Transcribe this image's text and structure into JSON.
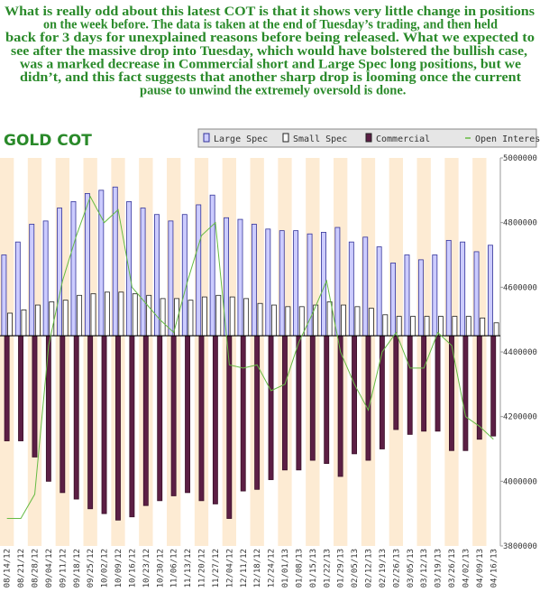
{
  "text": {
    "lines": [
      "What is really odd about this latest COT is that it shows very little change in positions",
      "on the week before. The data is taken at the end of Tuesday’s trading, and then held",
      "back for 3 days for unexplained reasons before being released. What we expected to",
      "see after the massive drop into Tuesday, which would have bolstered the bullish case,",
      "was a marked decrease in Commercial short and Large Spec long positions, but we",
      "didn’t, and this fact suggests that another sharp drop is looming once the current",
      "pause to unwind the extremely oversold is done."
    ]
  },
  "chart_data": {
    "type": "bar",
    "title": "GOLD COT",
    "categories": [
      "08/14/12",
      "08/21/12",
      "08/28/12",
      "09/04/12",
      "09/11/12",
      "09/18/12",
      "09/25/12",
      "10/02/12",
      "10/09/12",
      "10/16/12",
      "10/23/12",
      "10/30/12",
      "11/06/12",
      "11/13/12",
      "11/20/12",
      "11/27/12",
      "12/04/12",
      "12/11/12",
      "12/18/12",
      "12/24/12",
      "01/01/13",
      "01/08/13",
      "01/15/13",
      "01/22/13",
      "01/29/13",
      "02/05/13",
      "02/12/13",
      "02/19/13",
      "02/26/13",
      "03/05/13",
      "03/12/13",
      "03/19/13",
      "03/26/13",
      "04/02/13",
      "04/09/13",
      "04/16/13"
    ],
    "ylim": [
      -650000,
      550000
    ],
    "y2lim": [
      3800000,
      5000000
    ],
    "y2ticks": [
      3800000,
      4000000,
      4200000,
      4400000,
      4600000,
      4800000,
      5000000
    ],
    "series": [
      {
        "name": "Large Spec",
        "color": "#ccccff",
        "values": [
          250000,
          290000,
          345000,
          355000,
          395000,
          415000,
          440000,
          450000,
          460000,
          415000,
          395000,
          375000,
          355000,
          375000,
          405000,
          435000,
          365000,
          360000,
          345000,
          330000,
          325000,
          325000,
          315000,
          320000,
          335000,
          290000,
          305000,
          275000,
          225000,
          250000,
          235000,
          250000,
          295000,
          290000,
          260000,
          280000
        ]
      },
      {
        "name": "Small Spec",
        "color": "#ffffff",
        "values": [
          70000,
          80000,
          95000,
          105000,
          110000,
          125000,
          130000,
          135000,
          135000,
          130000,
          125000,
          115000,
          115000,
          110000,
          120000,
          125000,
          120000,
          115000,
          100000,
          95000,
          90000,
          90000,
          95000,
          105000,
          95000,
          90000,
          85000,
          65000,
          60000,
          60000,
          60000,
          60000,
          60000,
          60000,
          55000,
          40000
        ]
      },
      {
        "name": "Commercial",
        "color": "#5c1f45",
        "values": [
          -325000,
          -325000,
          -375000,
          -450000,
          -485000,
          -505000,
          -535000,
          -550000,
          -570000,
          -560000,
          -525000,
          -510000,
          -495000,
          -485000,
          -510000,
          -520000,
          -565000,
          -480000,
          -475000,
          -445000,
          -415000,
          -415000,
          -385000,
          -395000,
          -435000,
          -365000,
          -385000,
          -350000,
          -290000,
          -305000,
          -295000,
          -295000,
          -355000,
          -355000,
          -320000,
          -310000
        ]
      },
      {
        "name": "Open Interest",
        "color": "#66bb44",
        "axis": "y2",
        "values": [
          3885000,
          3885000,
          3960000,
          4420000,
          4620000,
          4760000,
          4880000,
          4800000,
          4840000,
          4600000,
          4550000,
          4500000,
          4460000,
          4620000,
          4760000,
          4800000,
          4360000,
          4350000,
          4360000,
          4280000,
          4300000,
          4430000,
          4520000,
          4620000,
          4400000,
          4300000,
          4220000,
          4400000,
          4460000,
          4350000,
          4350000,
          4460000,
          4420000,
          4200000,
          4170000,
          4130000
        ]
      }
    ]
  }
}
